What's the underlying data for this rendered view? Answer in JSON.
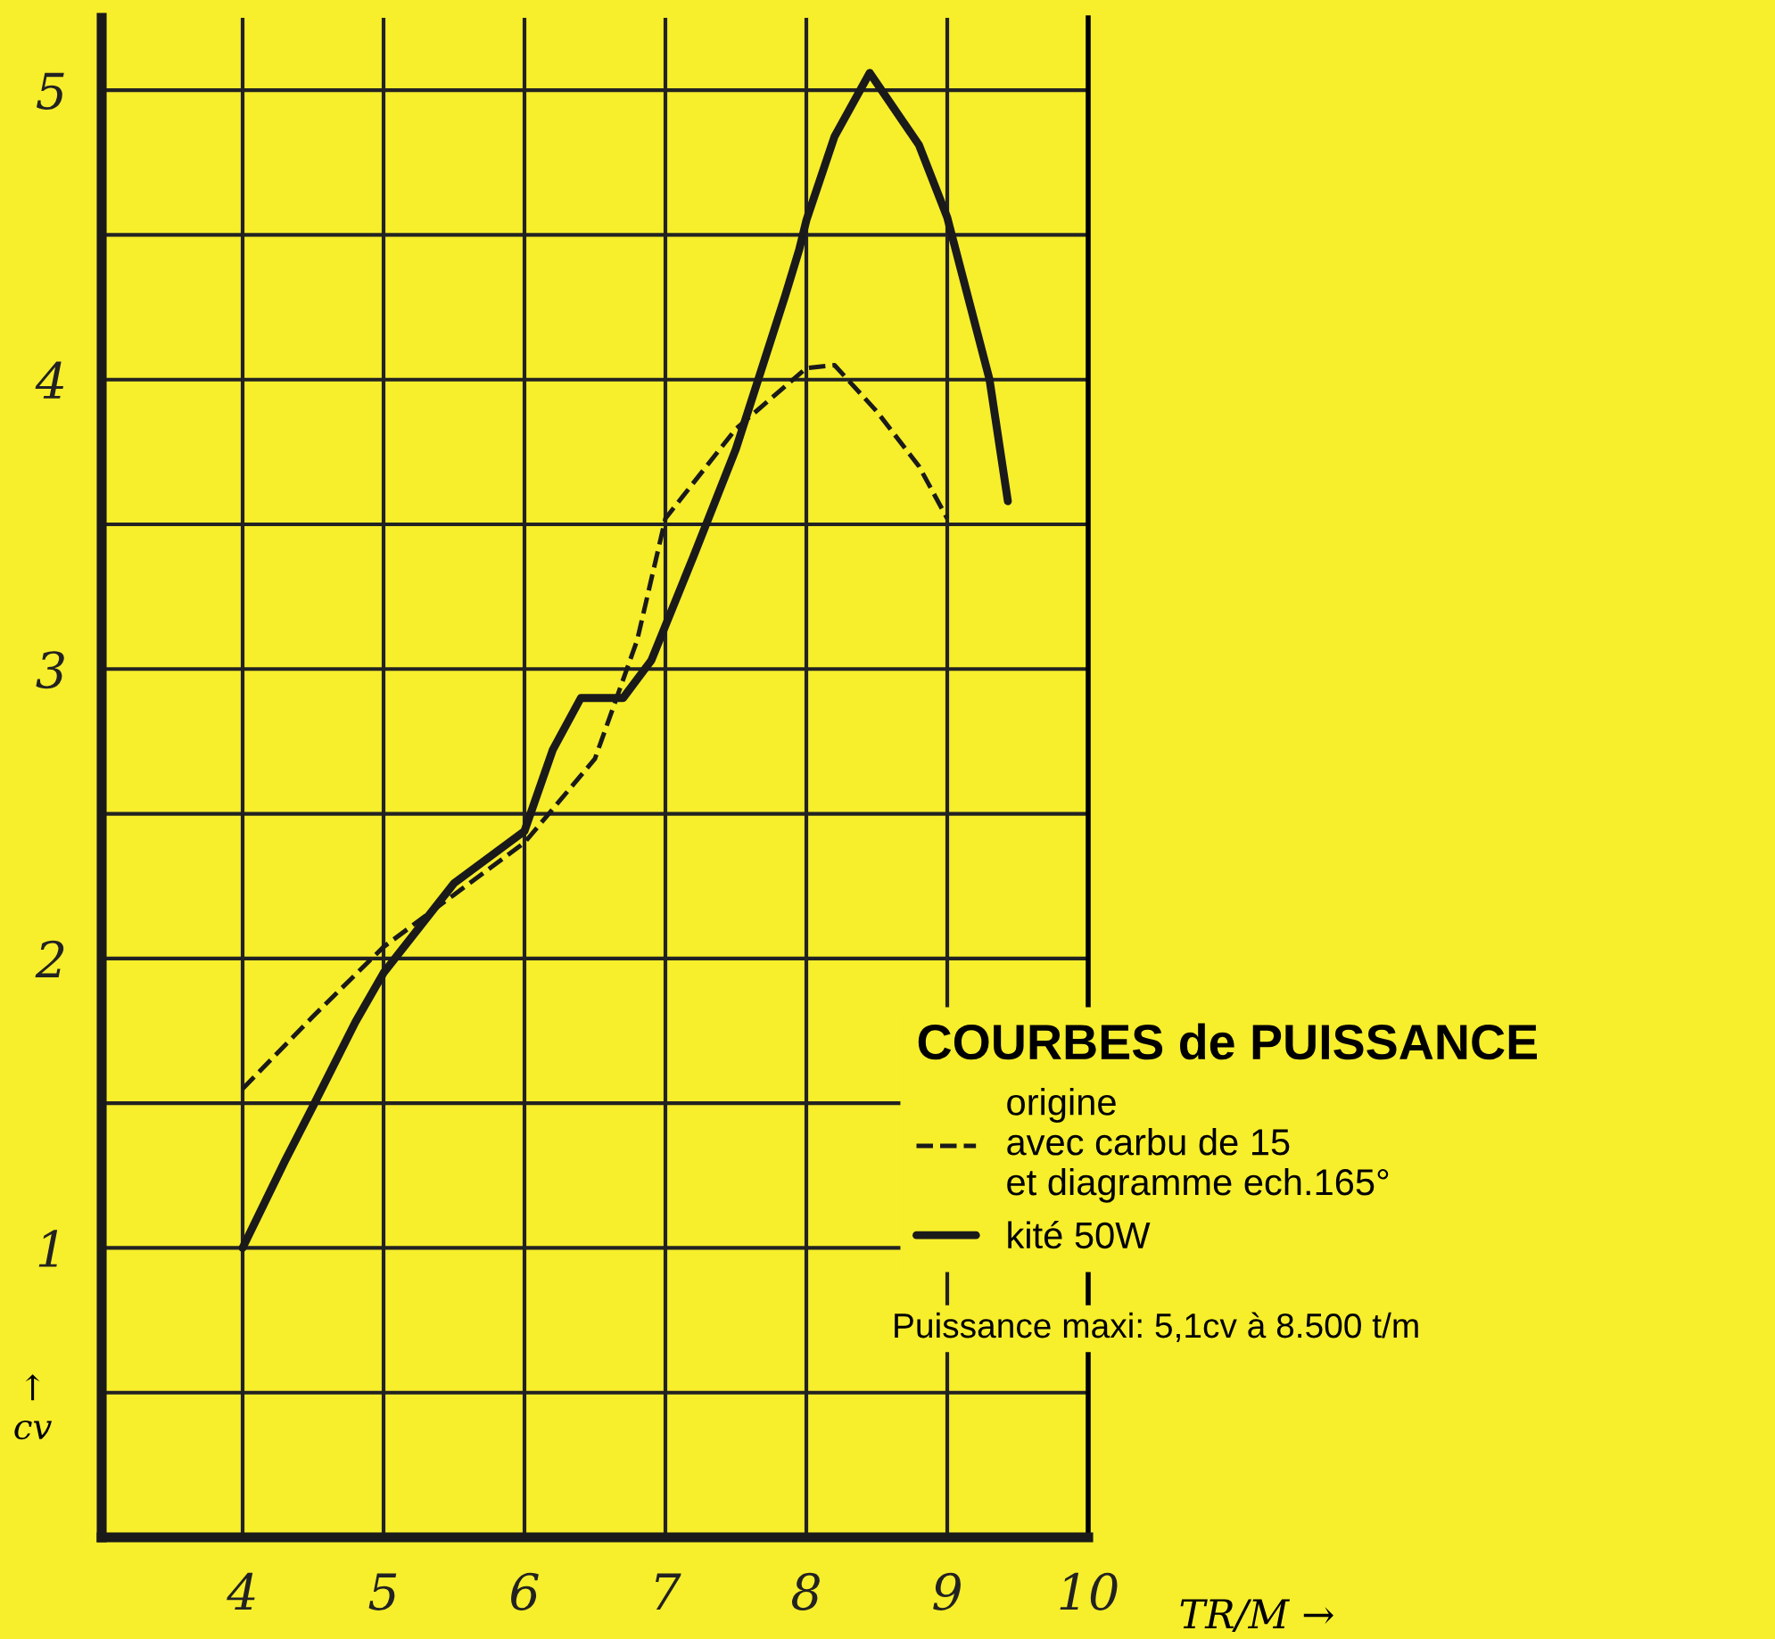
{
  "chart_data": {
    "type": "line",
    "legend_title": "COURBES de PUISSANCE",
    "xlabel": "TR/M →",
    "ylabel": "↑\ncv",
    "annotations": [
      "Puissance maxi: 5,1cv à 8.500 t/m"
    ],
    "series": [
      {
        "name": "origine\navec carbu de 15\net diagramme ech.165°",
        "color": "#1a1a1a",
        "line_style": "dashed",
        "x": [
          4,
          4.5,
          5,
          5.5,
          6,
          6.5,
          6.8,
          7,
          7.5,
          8,
          8.2,
          8.5,
          8.8,
          9
        ],
        "values": [
          1.55,
          1.8,
          2.04,
          2.22,
          2.4,
          2.69,
          3.1,
          3.52,
          3.83,
          4.04,
          4.05,
          3.89,
          3.7,
          3.52
        ]
      },
      {
        "name": "kité 50W",
        "color": "#1a1a1a",
        "line_style": "solid",
        "x": [
          4,
          4.3,
          4.5,
          4.8,
          5,
          5.5,
          6,
          6.2,
          6.4,
          6.7,
          6.9,
          7.2,
          7.5,
          7.85,
          7.95,
          8.0,
          8.2,
          8.45,
          8.8,
          9,
          9.3,
          9.43
        ],
        "values": [
          1.0,
          1.3,
          1.49,
          1.78,
          1.95,
          2.26,
          2.44,
          2.72,
          2.9,
          2.9,
          3.03,
          3.39,
          3.76,
          4.29,
          4.45,
          4.55,
          4.84,
          5.06,
          4.81,
          4.56,
          4.0,
          3.58
        ]
      }
    ],
    "xlim": [
      3,
      10
    ],
    "xticks": [
      4,
      5,
      6,
      7,
      8,
      9,
      10
    ],
    "ylim": [
      0,
      5.25
    ],
    "yticks": [
      {
        "value": 0.5,
        "label": null
      },
      1,
      {
        "value": 1.5,
        "label": null
      },
      2,
      {
        "value": 2.5,
        "label": null
      },
      3,
      {
        "value": 3.5,
        "label": null
      },
      4,
      {
        "value": 4.5,
        "label": null
      },
      5
    ],
    "grid": true,
    "legend": "bottom right"
  }
}
